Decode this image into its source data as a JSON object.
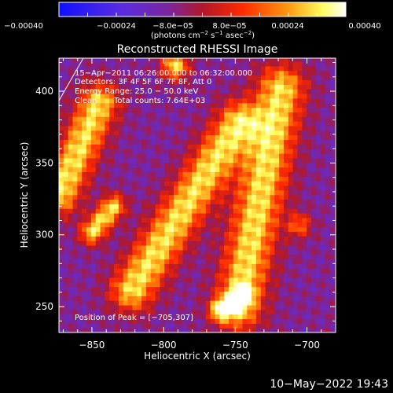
{
  "chart_data": {
    "type": "heatmap",
    "title": "Reconstructed RHESSI Image",
    "xlabel": "Heliocentric X (arcsec)",
    "ylabel": "Heliocentric Y (arcsec)",
    "xlim": [
      -873,
      -680
    ],
    "ylim": [
      232,
      423
    ],
    "x_ticks": [
      {
        "value": -850,
        "label": "−850"
      },
      {
        "value": -800,
        "label": "−800"
      },
      {
        "value": -750,
        "label": "−750"
      },
      {
        "value": -700,
        "label": "−700"
      }
    ],
    "y_ticks": [
      {
        "value": 250,
        "label": "250"
      },
      {
        "value": 300,
        "label": "300"
      },
      {
        "value": 350,
        "label": "350"
      },
      {
        "value": 400,
        "label": "400"
      }
    ],
    "colorbar": {
      "colormap": "hot (blue-purple-red-yellow-white)",
      "range": [
        -0.0004,
        0.0004
      ],
      "tick_labels": [
        "−0.00040",
        "−0.00024",
        "−8.0e−05",
        "8.0e−05",
        "0.00024",
        "0.00040"
      ],
      "label": {
        "line1": "(photons cm",
        "sup1": "−2",
        "mid1": " s",
        "sup2": "−1",
        "mid2": " asec",
        "sup3": "−2",
        "line2": ")"
      },
      "colors": [
        "#1010ff",
        "#5a2de0",
        "#7a25a0",
        "#b0182a",
        "#ff2a00",
        "#ff9a10",
        "#ffff60",
        "#ffffff"
      ]
    },
    "annotations": {
      "time_range": "15−Apr−2011 06:26:00.000 to 06:32:00.000",
      "detectors": "Detectors: 3F 4F 5F 6F 7F 8F, Att 0",
      "energy_range": "Energy Range: 25.0 − 50.0 keV",
      "clean_label": "Clean",
      "total_counts": "Total counts: 7.64E+03",
      "peak_position": "Position of Peak = [−705,307]"
    },
    "peak": {
      "x": -705,
      "y": 307
    },
    "emission_ridges": [
      {
        "name": "main diagonal ridge",
        "from": [
          -822,
          262
        ],
        "to": [
          -748,
          378
        ],
        "width_arcsec": 22
      },
      {
        "name": "right ridge",
        "from": [
          -748,
          250
        ],
        "to": [
          -718,
          402
        ],
        "width_arcsec": 24
      },
      {
        "name": "upper-left ridge",
        "from": [
          -873,
          328
        ],
        "to": [
          -845,
          392
        ],
        "width_arcsec": 20
      },
      {
        "name": "top blob",
        "from": [
          -792,
          418
        ],
        "to": [
          -792,
          418
        ],
        "width_arcsec": 14
      },
      {
        "name": "lower-left blob",
        "from": [
          -850,
          302
        ],
        "to": [
          -835,
          320
        ],
        "width_arcsec": 12
      },
      {
        "name": "bottom-right blob",
        "from": [
          -760,
          248
        ],
        "to": [
          -745,
          258
        ],
        "width_arcsec": 10
      }
    ],
    "grid": false
  },
  "footer": {
    "datestamp": "10−May−2022 19:43"
  }
}
